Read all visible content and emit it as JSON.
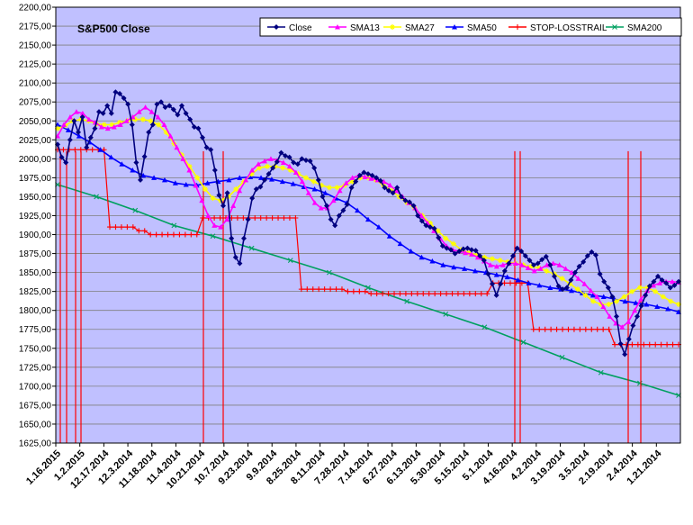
{
  "chart_data": {
    "type": "line",
    "title": "S&P500 Close",
    "xlabel": "",
    "ylabel": "",
    "ylim": [
      1625,
      2200
    ],
    "ystep": 25,
    "y_tick_labels": [
      "1625,00",
      "1650,00",
      "1675,00",
      "1700,00",
      "1725,00",
      "1750,00",
      "1775,00",
      "1800,00",
      "1825,00",
      "1850,00",
      "1875,00",
      "1900,00",
      "1925,00",
      "1950,00",
      "1975,00",
      "2000,00",
      "2025,00",
      "2050,00",
      "2075,00",
      "2100,00",
      "2125,00",
      "2150,00",
      "2175,00",
      "2200,00"
    ],
    "x_tick_labels": [
      "1.16.2015",
      "1.2.2015",
      "12.17.2014",
      "12.3.2014",
      "11.18.2014",
      "11.4.2014",
      "10.21.2014",
      "10.7.2014",
      "9.23.2014",
      "9.9.2014",
      "8.25.2014",
      "8.11.2014",
      "7.28.2014",
      "7.14.2014",
      "6.27.2014",
      "6.13.2014",
      "5.30.2014",
      "5.15.2014",
      "5.1.2014",
      "4.16.2014",
      "4.2.2014",
      "3.19.2014",
      "3.5.2014",
      "2.19.2014",
      "2.4.2014",
      "1.21.2014"
    ],
    "x_direction": "reversed (newest date on the left)",
    "grid": true,
    "legend_position": "top",
    "plot_background": "#c0c0ff",
    "series": [
      {
        "name": "Close",
        "color": "#00007f",
        "marker": "diamond",
        "values": [
          2019,
          2002,
          1995,
          2025,
          2050,
          2035,
          2055,
          2015,
          2028,
          2040,
          2062,
          2060,
          2070,
          2060,
          2088,
          2086,
          2080,
          2072,
          2045,
          1995,
          1972,
          2003,
          2035,
          2045,
          2072,
          2075,
          2068,
          2070,
          2065,
          2058,
          2070,
          2060,
          2052,
          2042,
          2040,
          2028,
          2015,
          2012,
          1985,
          1952,
          1938,
          1955,
          1895,
          1870,
          1862,
          1895,
          1920,
          1948,
          1960,
          1963,
          1972,
          1980,
          1988,
          1996,
          2008,
          2004,
          2002,
          1995,
          1993,
          2000,
          1998,
          1997,
          1988,
          1972,
          1950,
          1938,
          1920,
          1912,
          1925,
          1932,
          1940,
          1962,
          1970,
          1978,
          1982,
          1980,
          1978,
          1975,
          1971,
          1962,
          1958,
          1955,
          1962,
          1950,
          1945,
          1943,
          1938,
          1925,
          1918,
          1912,
          1910,
          1908,
          1896,
          1885,
          1882,
          1880,
          1875,
          1878,
          1881,
          1882,
          1880,
          1879,
          1872,
          1866,
          1848,
          1835,
          1820,
          1835,
          1852,
          1862,
          1872,
          1882,
          1878,
          1872,
          1866,
          1860,
          1862,
          1867,
          1871,
          1860,
          1845,
          1832,
          1828,
          1830,
          1840,
          1850,
          1858,
          1864,
          1872,
          1877,
          1873,
          1848,
          1838,
          1830,
          1818,
          1792,
          1756,
          1742,
          1762,
          1780,
          1792,
          1806,
          1820,
          1832,
          1838,
          1845,
          1840,
          1836,
          1830,
          1833,
          1838
        ]
      },
      {
        "name": "SMA13",
        "color": "#ff00ff",
        "marker": "triangle",
        "values": [
          2030,
          2045,
          2055,
          2062,
          2060,
          2052,
          2048,
          2042,
          2040,
          2042,
          2045,
          2050,
          2055,
          2062,
          2068,
          2062,
          2055,
          2045,
          2030,
          2015,
          2000,
          1985,
          1965,
          1945,
          1925,
          1912,
          1910,
          1920,
          1938,
          1958,
          1972,
          1985,
          1993,
          1997,
          2000,
          1998,
          1995,
          1990,
          1982,
          1970,
          1955,
          1942,
          1935,
          1935,
          1945,
          1958,
          1968,
          1975,
          1978,
          1976,
          1974,
          1972,
          1970,
          1965,
          1958,
          1950,
          1942,
          1935,
          1925,
          1915,
          1905,
          1895,
          1885,
          1880,
          1878,
          1876,
          1874,
          1870,
          1865,
          1860,
          1858,
          1860,
          1862,
          1862,
          1860,
          1856,
          1852,
          1855,
          1860,
          1862,
          1860,
          1855,
          1850,
          1842,
          1835,
          1826,
          1818,
          1805,
          1792,
          1783,
          1778,
          1785,
          1800,
          1815,
          1826,
          1833,
          1836,
          1838,
          1838,
          1837
        ]
      },
      {
        "name": "SMA27",
        "color": "#ffff00",
        "marker": "star",
        "values": [
          2040,
          2044,
          2050,
          2052,
          2050,
          2046,
          2045,
          2045,
          2048,
          2050,
          2052,
          2052,
          2050,
          2045,
          2035,
          2020,
          2005,
          1990,
          1975,
          1960,
          1948,
          1945,
          1950,
          1960,
          1970,
          1980,
          1988,
          1990,
          1990,
          1988,
          1985,
          1980,
          1975,
          1970,
          1965,
          1962,
          1962,
          1965,
          1970,
          1975,
          1975,
          1972,
          1965,
          1958,
          1950,
          1942,
          1935,
          1925,
          1915,
          1905,
          1895,
          1888,
          1880,
          1876,
          1873,
          1870,
          1868,
          1866,
          1864,
          1862,
          1860,
          1858,
          1856,
          1852,
          1848,
          1842,
          1835,
          1828,
          1820,
          1812,
          1808,
          1808,
          1812,
          1818,
          1825,
          1830,
          1830,
          1825,
          1818,
          1812,
          1808
        ]
      },
      {
        "name": "SMA50",
        "color": "#0000ff",
        "marker": "triangle",
        "values": [
          2045,
          2038,
          2030,
          2022,
          2012,
          2002,
          1993,
          1985,
          1978,
          1975,
          1972,
          1968,
          1966,
          1965,
          1968,
          1970,
          1972,
          1975,
          1976,
          1975,
          1973,
          1970,
          1967,
          1963,
          1960,
          1955,
          1948,
          1942,
          1932,
          1920,
          1910,
          1898,
          1888,
          1878,
          1870,
          1865,
          1860,
          1857,
          1855,
          1852,
          1850,
          1847,
          1844,
          1840,
          1836,
          1833,
          1830,
          1828,
          1826,
          1823,
          1820,
          1818,
          1815,
          1812,
          1810,
          1808,
          1805,
          1802,
          1798
        ]
      },
      {
        "name": "STOP-LOSSTRAIL",
        "color": "#ff0000",
        "marker": "plus",
        "values": [
          2012,
          2012,
          2012,
          2012,
          2012,
          2012,
          2012,
          2012,
          2012,
          1910,
          1910,
          1910,
          1910,
          1910,
          1905,
          1905,
          1900,
          1900,
          1900,
          1900,
          1900,
          1900,
          1900,
          1900,
          1900,
          1922,
          1922,
          1922,
          1922,
          1922,
          1922,
          1922,
          1922,
          1922,
          1922,
          1922,
          1922,
          1922,
          1922,
          1922,
          1922,
          1922,
          1828,
          1828,
          1828,
          1828,
          1828,
          1828,
          1828,
          1828,
          1825,
          1825,
          1825,
          1825,
          1822,
          1822,
          1822,
          1822,
          1822,
          1822,
          1822,
          1822,
          1822,
          1822,
          1822,
          1822,
          1822,
          1822,
          1822,
          1822,
          1822,
          1822,
          1822,
          1822,
          1822,
          1836,
          1836,
          1836,
          1836,
          1836,
          1836,
          1836,
          1775,
          1775,
          1775,
          1775,
          1775,
          1775,
          1775,
          1775,
          1775,
          1775,
          1775,
          1775,
          1775,
          1775,
          1755,
          1755,
          1755,
          1755,
          1755,
          1755,
          1755,
          1755,
          1755,
          1755,
          1755,
          1755
        ]
      },
      {
        "name": "SMA200",
        "color": "#00a060",
        "marker": "x",
        "values": [
          1966,
          1950,
          1932,
          1912,
          1898,
          1882,
          1866,
          1850,
          1830,
          1812,
          1795,
          1778,
          1758,
          1738,
          1718,
          1704,
          1688
        ]
      }
    ]
  }
}
